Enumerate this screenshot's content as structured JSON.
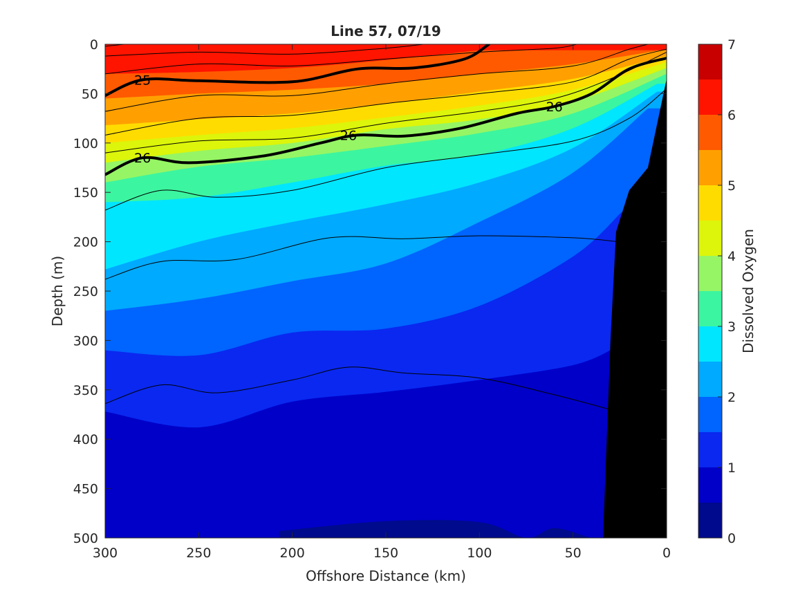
{
  "chart_data": {
    "type": "contour",
    "title": "Line 57, 07/19",
    "xlabel": "Offshore Distance (km)",
    "ylabel": "Depth (m)",
    "colorbar_label": "Dissolved Oxygen",
    "xlim": [
      300,
      0
    ],
    "ylim": [
      500,
      0
    ],
    "x_ticks": [
      "300",
      "250",
      "200",
      "150",
      "100",
      "50",
      "0"
    ],
    "y_ticks": [
      "0",
      "50",
      "100",
      "150",
      "200",
      "250",
      "300",
      "350",
      "400",
      "450",
      "500"
    ],
    "colorbar_ticks": [
      "0",
      "1",
      "2",
      "3",
      "4",
      "5",
      "6",
      "7"
    ],
    "colorbar_range": [
      0,
      7
    ],
    "colorbar_levels": [
      {
        "min": 0.0,
        "max": 0.5,
        "color": "#000a8c"
      },
      {
        "min": 0.5,
        "max": 1.0,
        "color": "#0000c8"
      },
      {
        "min": 1.0,
        "max": 1.5,
        "color": "#0a28f0"
      },
      {
        "min": 1.5,
        "max": 2.0,
        "color": "#0064ff"
      },
      {
        "min": 2.0,
        "max": 2.5,
        "color": "#00aaff"
      },
      {
        "min": 2.5,
        "max": 3.0,
        "color": "#00e6ff"
      },
      {
        "min": 3.0,
        "max": 3.5,
        "color": "#3cf5a0"
      },
      {
        "min": 3.5,
        "max": 4.0,
        "color": "#96f564"
      },
      {
        "min": 4.0,
        "max": 4.5,
        "color": "#dcf50a"
      },
      {
        "min": 4.5,
        "max": 5.0,
        "color": "#ffdc00"
      },
      {
        "min": 5.0,
        "max": 5.5,
        "color": "#ffa000"
      },
      {
        "min": 5.5,
        "max": 6.0,
        "color": "#ff5a00"
      },
      {
        "min": 6.0,
        "max": 6.5,
        "color": "#ff1400"
      },
      {
        "min": 6.5,
        "max": 7.0,
        "color": "#c80000"
      }
    ],
    "oxygen_isolines": [
      {
        "level": 0.5,
        "points": [
          [
            207,
            493
          ],
          [
            150,
            483
          ],
          [
            100,
            484
          ],
          [
            75,
            500
          ],
          [
            60,
            490
          ],
          [
            40,
            500
          ],
          [
            34,
            500
          ]
        ]
      },
      {
        "level": 1.0,
        "points": [
          [
            300,
            372
          ],
          [
            250,
            388
          ],
          [
            200,
            362
          ],
          [
            150,
            352
          ],
          [
            100,
            340
          ],
          [
            50,
            325
          ],
          [
            28,
            308
          ]
        ]
      },
      {
        "level": 1.5,
        "points": [
          [
            300,
            310
          ],
          [
            250,
            315
          ],
          [
            200,
            292
          ],
          [
            150,
            288
          ],
          [
            100,
            265
          ],
          [
            50,
            215
          ],
          [
            24,
            170
          ]
        ]
      },
      {
        "level": 2.0,
        "points": [
          [
            300,
            270
          ],
          [
            250,
            258
          ],
          [
            200,
            240
          ],
          [
            150,
            222
          ],
          [
            100,
            180
          ],
          [
            50,
            130
          ],
          [
            10,
            65
          ]
        ]
      },
      {
        "level": 2.5,
        "points": [
          [
            300,
            228
          ],
          [
            250,
            200
          ],
          [
            200,
            180
          ],
          [
            150,
            162
          ],
          [
            100,
            140
          ],
          [
            50,
            105
          ],
          [
            5,
            48
          ]
        ]
      },
      {
        "level": 3.0,
        "points": [
          [
            300,
            160
          ],
          [
            250,
            155
          ],
          [
            200,
            140
          ],
          [
            150,
            123
          ],
          [
            100,
            112
          ],
          [
            50,
            85
          ],
          [
            5,
            40
          ]
        ]
      },
      {
        "level": 3.5,
        "points": [
          [
            300,
            140
          ],
          [
            250,
            124
          ],
          [
            200,
            115
          ],
          [
            150,
            103
          ],
          [
            100,
            90
          ],
          [
            50,
            70
          ],
          [
            0,
            30
          ]
        ]
      },
      {
        "level": 4.0,
        "points": [
          [
            300,
            120
          ],
          [
            250,
            108
          ],
          [
            200,
            100
          ],
          [
            150,
            86
          ],
          [
            100,
            76
          ],
          [
            50,
            58
          ],
          [
            0,
            24
          ]
        ]
      },
      {
        "level": 4.5,
        "points": [
          [
            300,
            100
          ],
          [
            250,
            92
          ],
          [
            200,
            85
          ],
          [
            150,
            74
          ],
          [
            100,
            62
          ],
          [
            50,
            46
          ],
          [
            0,
            18
          ]
        ]
      },
      {
        "level": 5.0,
        "points": [
          [
            300,
            82
          ],
          [
            250,
            76
          ],
          [
            200,
            70
          ],
          [
            150,
            60
          ],
          [
            100,
            48
          ],
          [
            50,
            35
          ],
          [
            0,
            12
          ]
        ]
      },
      {
        "level": 5.5,
        "points": [
          [
            300,
            55
          ],
          [
            250,
            50
          ],
          [
            200,
            46
          ],
          [
            150,
            40
          ],
          [
            100,
            30
          ],
          [
            50,
            20
          ],
          [
            0,
            5
          ]
        ]
      },
      {
        "level": 6.0,
        "points": [
          [
            300,
            30
          ],
          [
            250,
            28
          ],
          [
            200,
            24
          ],
          [
            150,
            16
          ],
          [
            100,
            6
          ]
        ]
      }
    ],
    "density_contours": [
      {
        "level": 25.0,
        "labeled": true,
        "label": "25",
        "label_at": [
          280,
          36
        ],
        "points": [
          [
            300,
            52
          ],
          [
            280,
            36
          ],
          [
            250,
            37
          ],
          [
            200,
            38
          ],
          [
            165,
            25
          ],
          [
            135,
            24
          ],
          [
            108,
            15
          ],
          [
            95,
            0
          ]
        ]
      },
      {
        "level": 26.0,
        "labeled": true,
        "label": "26",
        "label_at": [
          280,
          115
        ],
        "label2": "26",
        "label2_at": [
          170,
          92
        ],
        "label3": "26",
        "label3_at": [
          60,
          63
        ],
        "points": [
          [
            300,
            132
          ],
          [
            280,
            115
          ],
          [
            255,
            120
          ],
          [
            215,
            113
          ],
          [
            185,
            100
          ],
          [
            165,
            92
          ],
          [
            140,
            93
          ],
          [
            110,
            85
          ],
          [
            80,
            70
          ],
          [
            60,
            63
          ],
          [
            40,
            50
          ],
          [
            20,
            25
          ],
          [
            0,
            14
          ]
        ]
      },
      {
        "level": 24.6,
        "labeled": false,
        "points": [
          [
            300,
            2
          ],
          [
            290,
            0
          ]
        ]
      },
      {
        "level": 24.8,
        "labeled": false,
        "points": [
          [
            300,
            12
          ],
          [
            250,
            8
          ],
          [
            200,
            10
          ],
          [
            150,
            4
          ],
          [
            130,
            0
          ]
        ]
      },
      {
        "level": 24.9,
        "labeled": false,
        "points": [
          [
            300,
            30
          ],
          [
            250,
            20
          ],
          [
            200,
            22
          ],
          [
            150,
            15
          ],
          [
            100,
            8
          ],
          [
            60,
            4
          ],
          [
            48,
            0
          ]
        ]
      },
      {
        "level": 25.2,
        "labeled": false,
        "points": [
          [
            300,
            68
          ],
          [
            250,
            52
          ],
          [
            200,
            52
          ],
          [
            150,
            40
          ],
          [
            100,
            30
          ],
          [
            50,
            22
          ],
          [
            20,
            5
          ],
          [
            10,
            0
          ]
        ]
      },
      {
        "level": 25.5,
        "labeled": false,
        "points": [
          [
            300,
            92
          ],
          [
            250,
            75
          ],
          [
            200,
            72
          ],
          [
            150,
            60
          ],
          [
            100,
            50
          ],
          [
            50,
            38
          ],
          [
            20,
            15
          ],
          [
            0,
            5
          ]
        ]
      },
      {
        "level": 25.8,
        "labeled": false,
        "points": [
          [
            300,
            110
          ],
          [
            250,
            98
          ],
          [
            200,
            95
          ],
          [
            150,
            80
          ],
          [
            100,
            68
          ],
          [
            60,
            55
          ],
          [
            30,
            35
          ],
          [
            0,
            8
          ]
        ]
      },
      {
        "level": 26.2,
        "labeled": false,
        "points": [
          [
            300,
            168
          ],
          [
            270,
            148
          ],
          [
            240,
            155
          ],
          [
            200,
            148
          ],
          [
            150,
            125
          ],
          [
            100,
            112
          ],
          [
            50,
            98
          ],
          [
            20,
            75
          ],
          [
            0,
            45
          ]
        ]
      },
      {
        "level": 26.4,
        "labeled": false,
        "points": [
          [
            300,
            238
          ],
          [
            270,
            220
          ],
          [
            230,
            218
          ],
          [
            180,
            196
          ],
          [
            140,
            197
          ],
          [
            100,
            194
          ],
          [
            50,
            196
          ],
          [
            26,
            200
          ]
        ]
      },
      {
        "level": 26.6,
        "labeled": false,
        "points": [
          [
            300,
            364
          ],
          [
            270,
            345
          ],
          [
            240,
            353
          ],
          [
            200,
            340
          ],
          [
            170,
            327
          ],
          [
            140,
            333
          ],
          [
            100,
            338
          ],
          [
            60,
            355
          ],
          [
            30,
            370
          ]
        ]
      }
    ],
    "land_mask": {
      "color": "#000000",
      "points": [
        [
          34,
          500
        ],
        [
          30,
          300
        ],
        [
          27,
          190
        ],
        [
          20,
          148
        ],
        [
          10,
          125
        ],
        [
          0,
          35
        ],
        [
          0,
          500
        ]
      ]
    }
  }
}
